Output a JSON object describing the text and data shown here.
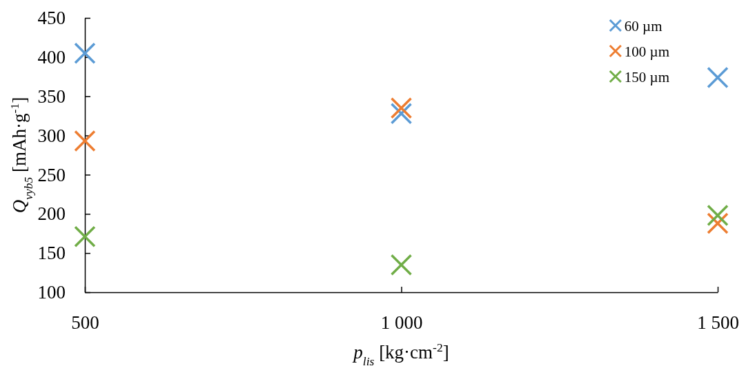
{
  "chart_data": {
    "type": "scatter",
    "xlabel": "p$_{lis}$ [kg·cm$^{-2}$]",
    "ylabel": "Q$_{vyb5}$ [mAh·g$^{-1}$]",
    "x": [
      500,
      1000,
      1500
    ],
    "xlim": [
      500,
      1500
    ],
    "xticks": [
      {
        "value": 500,
        "label": "500"
      },
      {
        "value": 1000,
        "label": "1 000"
      },
      {
        "value": 1500,
        "label": "1 500"
      }
    ],
    "ylim": [
      100,
      450
    ],
    "yticks": [
      100,
      150,
      200,
      250,
      300,
      350,
      400,
      450
    ],
    "series": [
      {
        "name": "60 µm",
        "color": "#5b9bd5",
        "values": [
          405,
          328,
          374
        ]
      },
      {
        "name": "100 µm",
        "color": "#ed7d31",
        "values": [
          293,
          335,
          188
        ]
      },
      {
        "name": "150 µm",
        "color": "#70ad47",
        "values": [
          171,
          135,
          198
        ]
      }
    ],
    "marker": "cross",
    "legend": "top right",
    "grid": false
  }
}
